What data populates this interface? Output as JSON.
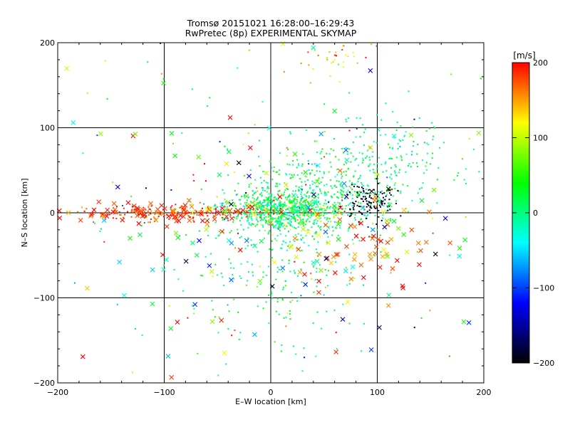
{
  "chart_data": {
    "type": "scatter",
    "title": "Tromsø 20151021 16:28:00–16:29:43",
    "subtitle": "RwPretec (8p) EXPERIMENTAL SKYMAP",
    "xlabel": "E–W location [km]",
    "ylabel": "N–S location [km]",
    "xlim": [
      -200,
      200
    ],
    "ylim": [
      -200,
      200
    ],
    "xticks": [
      -200,
      -100,
      0,
      100,
      200
    ],
    "yticks": [
      -200,
      -100,
      0,
      100,
      200
    ],
    "xtick_labels": [
      "−200",
      "−100",
      "0",
      "100",
      "200"
    ],
    "ytick_labels": [
      "−200",
      "−100",
      "0",
      "100",
      "200"
    ],
    "grid": true,
    "grid_lines_x": [
      -100,
      0,
      100
    ],
    "grid_lines_y": [
      -100,
      0,
      100
    ],
    "marker_types": [
      "point",
      "cross"
    ],
    "colorbar": {
      "label": "[m/s]",
      "min": -200,
      "max": 200,
      "ticks": [
        200,
        100,
        0,
        -100,
        -200
      ],
      "tick_labels": [
        "200",
        "100",
        "0",
        "−100",
        "−200"
      ],
      "colormap": [
        "#000000",
        "#0000ff",
        "#00ffff",
        "#00ff00",
        "#ffff00",
        "#ff0000"
      ]
    },
    "clusters": [
      {
        "name_hint": "east-center-green",
        "cx": 10,
        "cy": 3,
        "sx": 25,
        "sy": 12,
        "n": 700,
        "vmean": 15,
        "vspread": 40,
        "marker": "point"
      },
      {
        "name_hint": "ne-band-green",
        "cx": 60,
        "cy": 30,
        "sx": 40,
        "sy": 25,
        "n": 350,
        "vmean": 10,
        "vspread": 25,
        "marker": "point"
      },
      {
        "name_hint": "ne-wide-green",
        "cx": 110,
        "cy": 70,
        "sx": 35,
        "sy": 30,
        "n": 150,
        "vmean": 0,
        "vspread": 20,
        "marker": "point"
      },
      {
        "name_hint": "south-spray-green",
        "cx": 0,
        "cy": -60,
        "sx": 40,
        "sy": 45,
        "n": 220,
        "vmean": 10,
        "vspread": 30,
        "marker": "point"
      },
      {
        "name_hint": "black-cluster-east",
        "cx": 93,
        "cy": 15,
        "sx": 12,
        "sy": 10,
        "n": 120,
        "vmean": -190,
        "vspread": 8,
        "marker": "point"
      },
      {
        "name_hint": "west-red-band-points",
        "cx": -85,
        "cy": 0,
        "sx": 45,
        "sy": 5,
        "n": 170,
        "vmean": 185,
        "vspread": 20,
        "marker": "point"
      },
      {
        "name_hint": "west-red-band-crosses",
        "cx": -90,
        "cy": 0,
        "sx": 50,
        "sy": 6,
        "n": 90,
        "vmean": 180,
        "vspread": 25,
        "marker": "cross"
      },
      {
        "name_hint": "center-crosses",
        "cx": 30,
        "cy": -5,
        "sx": 55,
        "sy": 30,
        "n": 70,
        "vmean": 20,
        "vspread": 90,
        "marker": "cross"
      },
      {
        "name_hint": "east-red-crosses",
        "cx": 95,
        "cy": -40,
        "sx": 30,
        "sy": 30,
        "n": 50,
        "vmean": 170,
        "vspread": 30,
        "marker": "cross"
      },
      {
        "name_hint": "north-yellow-points",
        "cx": 60,
        "cy": 180,
        "sx": 20,
        "sy": 12,
        "n": 35,
        "vmean": 130,
        "vspread": 40,
        "marker": "point"
      },
      {
        "name_hint": "scattered-points",
        "cx": 0,
        "cy": 0,
        "sx": 110,
        "sy": 110,
        "n": 160,
        "vmean": 40,
        "vspread": 120,
        "marker": "point"
      },
      {
        "name_hint": "scattered-crosses",
        "cx": 0,
        "cy": -20,
        "sx": 110,
        "sy": 100,
        "n": 110,
        "vmean": 40,
        "vspread": 130,
        "marker": "cross"
      }
    ],
    "random_seed": 20151021
  }
}
